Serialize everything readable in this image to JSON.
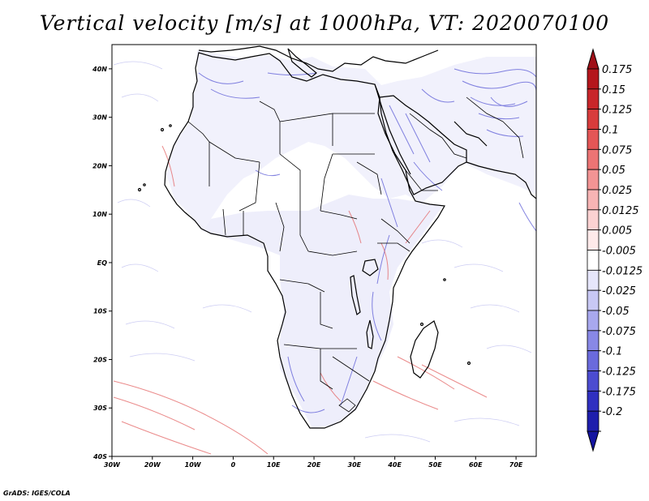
{
  "title": "Vertical velocity [m/s] at 1000hPa, VT: 2020070100",
  "credit": "GrADS: IGES/COLA",
  "map": {
    "lon_range": [
      -30,
      75
    ],
    "lat_range": [
      -40,
      45
    ],
    "lon_ticks": [
      "30W",
      "20W",
      "10W",
      "0",
      "10E",
      "20E",
      "30E",
      "40E",
      "50E",
      "60E",
      "70E"
    ],
    "lat_ticks": [
      "40N",
      "30N",
      "20N",
      "10N",
      "EQ",
      "10S",
      "20S",
      "30S",
      "40S"
    ]
  },
  "colorbar": {
    "levels": [
      {
        "label": "0.175",
        "color": "#b4161c"
      },
      {
        "label": "0.15",
        "color": "#c8262a"
      },
      {
        "label": "0.125",
        "color": "#d83c3c"
      },
      {
        "label": "0.1",
        "color": "#e45656"
      },
      {
        "label": "0.075",
        "color": "#ec7474"
      },
      {
        "label": "0.05",
        "color": "#f29494"
      },
      {
        "label": "0.025",
        "color": "#f7b4b4"
      },
      {
        "label": "0.0125",
        "color": "#fbd2d2"
      },
      {
        "label": "0.005",
        "color": "#feeaea"
      },
      {
        "label": "-0.005",
        "color": "#ffffff"
      },
      {
        "label": "-0.0125",
        "color": "#e6e6fb"
      },
      {
        "label": "-0.025",
        "color": "#c8c8f4"
      },
      {
        "label": "-0.05",
        "color": "#a8a8ee"
      },
      {
        "label": "-0.075",
        "color": "#8888e6"
      },
      {
        "label": "-0.1",
        "color": "#6a6adc"
      },
      {
        "label": "-0.125",
        "color": "#4c4cd0"
      },
      {
        "label": "-0.175",
        "color": "#3030c0"
      },
      {
        "label": "-0.2",
        "color": "#1e1eac"
      }
    ],
    "top_cap_color": "#a01018",
    "bottom_cap_color": "#1414a0"
  }
}
